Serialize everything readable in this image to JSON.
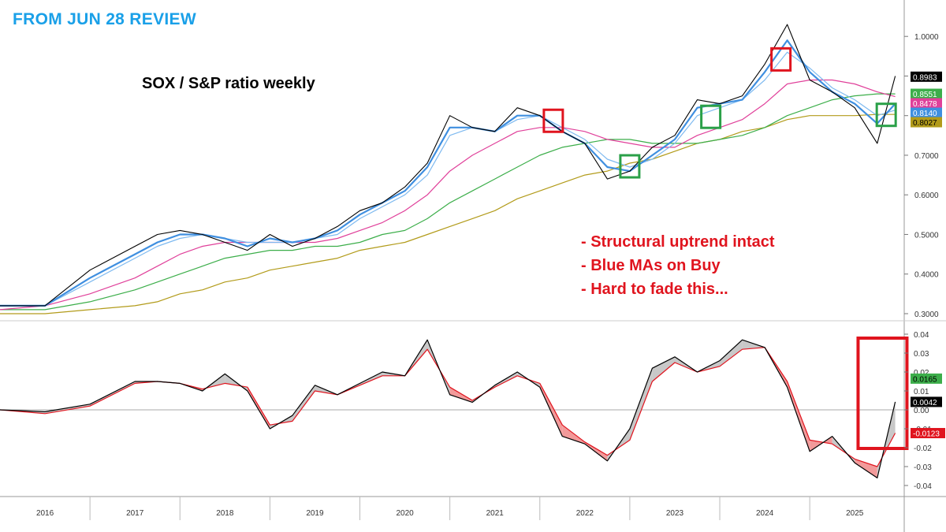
{
  "header_text": "FROM JUN 28 REVIEW",
  "chart_data": [
    {
      "type": "line",
      "title": "SOX / S&P ratio weekly",
      "xlabel": "",
      "ylabel": "",
      "ylim": [
        0.29,
        1.08
      ],
      "x_ticks": [
        "2016",
        "2017",
        "2018",
        "2019",
        "2020",
        "2021",
        "2022",
        "2023",
        "2024",
        "2025"
      ],
      "y_ticks": [
        "1.0000",
        "0.9000",
        "0.8000",
        "0.7000",
        "0.6000",
        "0.5000",
        "0.4000",
        "0.3000"
      ],
      "x": [
        2015.5,
        2016.0,
        2016.5,
        2017.0,
        2017.25,
        2017.5,
        2017.75,
        2018.0,
        2018.25,
        2018.5,
        2018.75,
        2019.0,
        2019.25,
        2019.5,
        2019.75,
        2020.0,
        2020.25,
        2020.5,
        2020.75,
        2021.0,
        2021.25,
        2021.5,
        2021.75,
        2022.0,
        2022.25,
        2022.5,
        2022.75,
        2023.0,
        2023.25,
        2023.5,
        2023.75,
        2024.0,
        2024.25,
        2024.5,
        2024.75,
        2025.0,
        2025.25,
        2025.45
      ],
      "series": [
        {
          "name": "SOX/SPX ratio",
          "color": "#000000",
          "values": [
            0.32,
            0.32,
            0.41,
            0.47,
            0.5,
            0.51,
            0.5,
            0.48,
            0.46,
            0.5,
            0.47,
            0.49,
            0.52,
            0.56,
            0.58,
            0.62,
            0.68,
            0.8,
            0.77,
            0.76,
            0.82,
            0.8,
            0.76,
            0.73,
            0.64,
            0.66,
            0.72,
            0.75,
            0.84,
            0.83,
            0.85,
            0.93,
            1.03,
            0.89,
            0.86,
            0.82,
            0.73,
            0.9
          ]
        },
        {
          "name": "Fast MA",
          "color": "#3f8fe0",
          "values": [
            0.32,
            0.32,
            0.39,
            0.45,
            0.48,
            0.5,
            0.5,
            0.49,
            0.47,
            0.49,
            0.48,
            0.49,
            0.51,
            0.55,
            0.58,
            0.61,
            0.67,
            0.77,
            0.77,
            0.76,
            0.8,
            0.8,
            0.76,
            0.73,
            0.67,
            0.66,
            0.7,
            0.74,
            0.82,
            0.83,
            0.84,
            0.91,
            0.99,
            0.91,
            0.86,
            0.83,
            0.78,
            0.83
          ]
        },
        {
          "name": "Slow blue MA",
          "color": "#7fbaf0",
          "values": [
            0.32,
            0.32,
            0.38,
            0.44,
            0.47,
            0.49,
            0.5,
            0.49,
            0.48,
            0.48,
            0.48,
            0.49,
            0.5,
            0.54,
            0.57,
            0.6,
            0.65,
            0.75,
            0.77,
            0.76,
            0.79,
            0.8,
            0.77,
            0.74,
            0.69,
            0.67,
            0.69,
            0.73,
            0.8,
            0.82,
            0.84,
            0.89,
            0.96,
            0.92,
            0.87,
            0.84,
            0.8,
            0.814
          ]
        },
        {
          "name": "Magenta MA",
          "color": "#e0409a",
          "values": [
            0.31,
            0.32,
            0.35,
            0.39,
            0.42,
            0.45,
            0.47,
            0.48,
            0.48,
            0.48,
            0.48,
            0.48,
            0.49,
            0.51,
            0.53,
            0.56,
            0.6,
            0.66,
            0.7,
            0.73,
            0.76,
            0.77,
            0.77,
            0.76,
            0.74,
            0.73,
            0.72,
            0.72,
            0.75,
            0.77,
            0.79,
            0.83,
            0.88,
            0.89,
            0.89,
            0.88,
            0.86,
            0.848
          ]
        },
        {
          "name": "Green MA",
          "color": "#3cae4a",
          "values": [
            0.31,
            0.31,
            0.33,
            0.36,
            0.38,
            0.4,
            0.42,
            0.44,
            0.45,
            0.46,
            0.46,
            0.47,
            0.47,
            0.48,
            0.5,
            0.51,
            0.54,
            0.58,
            0.61,
            0.64,
            0.67,
            0.7,
            0.72,
            0.73,
            0.74,
            0.74,
            0.73,
            0.73,
            0.73,
            0.74,
            0.75,
            0.77,
            0.8,
            0.82,
            0.84,
            0.85,
            0.855,
            0.855
          ]
        },
        {
          "name": "Olive MA",
          "color": "#b29b1a",
          "values": [
            0.3,
            0.3,
            0.31,
            0.32,
            0.33,
            0.35,
            0.36,
            0.38,
            0.39,
            0.41,
            0.42,
            0.43,
            0.44,
            0.46,
            0.47,
            0.48,
            0.5,
            0.52,
            0.54,
            0.56,
            0.59,
            0.61,
            0.63,
            0.65,
            0.66,
            0.68,
            0.69,
            0.71,
            0.73,
            0.74,
            0.76,
            0.77,
            0.79,
            0.8,
            0.8,
            0.8,
            0.803,
            0.803
          ]
        }
      ],
      "last_values": [
        {
          "label": "0.8983",
          "bg": "#000000",
          "fg": "#ffffff",
          "value": 0.8983
        },
        {
          "label": "0.8551",
          "bg": "#3cae4a",
          "fg": "#ffffff",
          "value": 0.8551
        },
        {
          "label": "0.8478",
          "bg": "#e0409a",
          "fg": "#ffffff",
          "value": 0.8478
        },
        {
          "label": "0.8140",
          "bg": "#3f8fe0",
          "fg": "#ffffff",
          "value": 0.814
        },
        {
          "label": "0.8027",
          "bg": "#b29b1a",
          "fg": "#000000",
          "value": 0.8027
        }
      ],
      "annotations": [
        {
          "label": "red box",
          "color": "#e0141e",
          "x": 2021.65,
          "y": 0.785
        },
        {
          "label": "green box",
          "color": "#2aa048",
          "x": 2022.5,
          "y": 0.67
        },
        {
          "label": "green box",
          "color": "#2aa048",
          "x": 2023.4,
          "y": 0.795
        },
        {
          "label": "red box",
          "color": "#e0141e",
          "x": 2024.18,
          "y": 0.94
        },
        {
          "label": "green box",
          "color": "#2aa048",
          "x": 2025.35,
          "y": 0.8
        }
      ]
    },
    {
      "type": "line",
      "title": "",
      "xlabel": "",
      "ylabel": "",
      "ylim": [
        -0.045,
        0.045
      ],
      "y_ticks": [
        "0.04",
        "0.03",
        "0.02",
        "0.01",
        "0.00",
        "-0.01",
        "-0.02",
        "-0.03",
        "-0.04"
      ],
      "x": [
        2015.5,
        2016.0,
        2016.5,
        2017.0,
        2017.25,
        2017.5,
        2017.75,
        2018.0,
        2018.25,
        2018.5,
        2018.75,
        2019.0,
        2019.25,
        2019.5,
        2019.75,
        2020.0,
        2020.25,
        2020.5,
        2020.75,
        2021.0,
        2021.25,
        2021.5,
        2021.75,
        2022.0,
        2022.25,
        2022.5,
        2022.75,
        2023.0,
        2023.25,
        2023.5,
        2023.75,
        2024.0,
        2024.25,
        2024.5,
        2024.75,
        2025.0,
        2025.25,
        2025.45
      ],
      "series": [
        {
          "name": "Oscillator",
          "color": "#000000",
          "values": [
            0.0,
            -0.001,
            0.003,
            0.015,
            0.015,
            0.014,
            0.01,
            0.019,
            0.01,
            -0.01,
            -0.003,
            0.013,
            0.008,
            0.014,
            0.02,
            0.018,
            0.037,
            0.008,
            0.004,
            0.013,
            0.02,
            0.012,
            -0.014,
            -0.018,
            -0.027,
            -0.01,
            0.022,
            0.028,
            0.02,
            0.026,
            0.037,
            0.033,
            0.012,
            -0.022,
            -0.014,
            -0.028,
            -0.036,
            0.0042
          ]
        },
        {
          "name": "Signal",
          "color": "#e0141e",
          "values": [
            0.0,
            -0.002,
            0.002,
            0.014,
            0.015,
            0.014,
            0.011,
            0.014,
            0.012,
            -0.008,
            -0.006,
            0.01,
            0.008,
            0.013,
            0.018,
            0.018,
            0.032,
            0.012,
            0.005,
            0.012,
            0.018,
            0.014,
            -0.008,
            -0.017,
            -0.024,
            -0.016,
            0.015,
            0.025,
            0.02,
            0.023,
            0.032,
            0.033,
            0.015,
            -0.016,
            -0.018,
            -0.026,
            -0.03,
            -0.0123
          ]
        }
      ],
      "last_values": [
        {
          "label": "0.0165",
          "bg": "#3cae4a",
          "fg": "#000000",
          "value": 0.0165
        },
        {
          "label": "0.0042",
          "bg": "#000000",
          "fg": "#ffffff",
          "value": 0.0042
        },
        {
          "label": "-0.0123",
          "bg": "#e0141e",
          "fg": "#ffffff",
          "value": -0.0123
        }
      ],
      "annotations": [
        {
          "label": "red box",
          "color": "#e0141e",
          "x": 2025.3,
          "y": -0.01
        }
      ]
    }
  ],
  "notes": [
    "- Structural uptrend intact",
    "- Blue MAs on Buy",
    "- Hard to fade this..."
  ]
}
